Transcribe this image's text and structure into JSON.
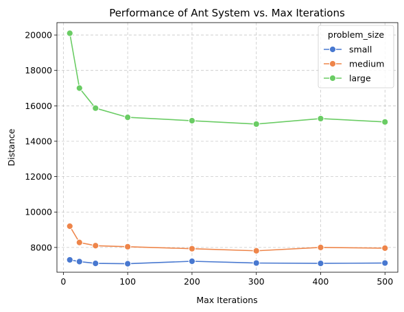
{
  "chart_data": {
    "type": "line",
    "title": "Performance of Ant System vs. Max Iterations",
    "xlabel": "Max Iterations",
    "ylabel": "Distance",
    "xlim": [
      -10,
      520
    ],
    "ylim": [
      6600,
      20700
    ],
    "xticks": [
      0,
      100,
      200,
      300,
      400,
      500
    ],
    "yticks": [
      8000,
      10000,
      12000,
      14000,
      16000,
      18000,
      20000
    ],
    "grid": true,
    "legend": {
      "title": "problem_size",
      "placement": "top-right"
    },
    "x": [
      10,
      25,
      50,
      100,
      200,
      300,
      400,
      500
    ],
    "series": [
      {
        "name": "small",
        "color": "#4878d0",
        "values": [
          7300,
          7200,
          7100,
          7080,
          7220,
          7120,
          7100,
          7120
        ]
      },
      {
        "name": "medium",
        "color": "#ee854a",
        "values": [
          9200,
          8280,
          8100,
          8040,
          7930,
          7810,
          8000,
          7960
        ]
      },
      {
        "name": "large",
        "color": "#6acc64",
        "values": [
          20100,
          17000,
          15870,
          15350,
          15160,
          14970,
          15280,
          15090
        ]
      }
    ]
  }
}
